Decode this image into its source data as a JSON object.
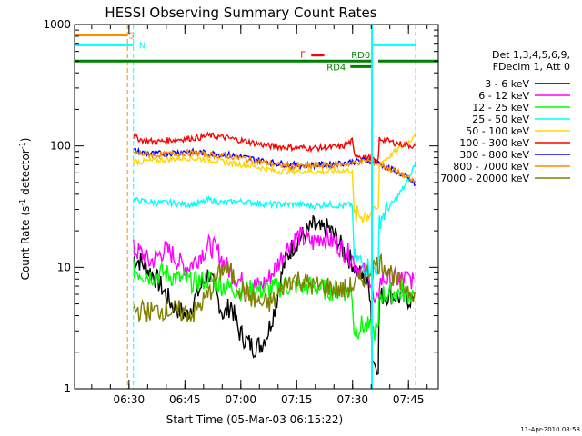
{
  "chart_data": {
    "type": "line",
    "title": "HESSI Observing Summary Count Rates",
    "xlabel": "Start Time (05-Mar-03 06:15:22)",
    "ylabel": "Count Rate (s⁻¹ detector⁻¹)",
    "ylabel_parts": {
      "base": "Count Rate (s",
      "sup1": "-1",
      "mid": " detector",
      "sup2": "-1",
      "end": ")"
    },
    "yscale": "log",
    "ylim": [
      1,
      1000
    ],
    "xlim": [
      "06:15:22",
      "07:53:00"
    ],
    "xlim_minutes": [
      0.0,
      97.6
    ],
    "x_ticks": [
      {
        "label": "06:30",
        "min": 14.6
      },
      {
        "label": "06:45",
        "min": 29.6
      },
      {
        "label": "07:00",
        "min": 44.6
      },
      {
        "label": "07:15",
        "min": 59.6
      },
      {
        "label": "07:30",
        "min": 74.6
      },
      {
        "label": "07:45",
        "min": 89.6
      }
    ],
    "y_ticks": [
      {
        "label": "1",
        "value": 1
      },
      {
        "label": "10",
        "value": 10
      },
      {
        "label": "100",
        "value": 100
      },
      {
        "label": "1000",
        "value": 1000
      }
    ],
    "legend": {
      "header1": "Det 1,3,4,5,6,9,",
      "header2": "FDecim 1, Att 0",
      "placement": "right"
    },
    "timestamp": "11-Apr-2010 08:58",
    "series": [
      {
        "name": "3 - 6 keV",
        "color": "#000000",
        "points": [
          [
            15.8,
            12
          ],
          [
            18,
            11
          ],
          [
            22,
            8
          ],
          [
            26,
            5
          ],
          [
            30,
            4
          ],
          [
            34,
            7
          ],
          [
            36,
            9
          ],
          [
            38,
            6
          ],
          [
            40,
            4
          ],
          [
            42,
            5
          ],
          [
            44,
            3
          ],
          [
            46,
            2.5
          ],
          [
            48,
            2.2
          ],
          [
            50,
            2.3
          ],
          [
            52,
            3
          ],
          [
            54,
            5
          ],
          [
            56,
            10
          ],
          [
            58,
            14
          ],
          [
            60,
            17
          ],
          [
            62,
            19
          ],
          [
            64,
            22
          ],
          [
            66,
            20
          ],
          [
            68,
            21
          ],
          [
            70,
            18
          ],
          [
            72,
            14
          ],
          [
            74.5,
            11
          ],
          [
            76,
            9
          ],
          [
            78,
            8
          ],
          [
            79.5,
            6
          ],
          [
            79.8,
            1.9
          ],
          [
            80.5,
            1.6
          ],
          [
            81.5,
            1.6
          ],
          [
            81.8,
            5.5
          ],
          [
            83,
            6
          ],
          [
            85,
            6
          ],
          [
            88,
            5.5
          ],
          [
            91,
            5.5
          ]
        ]
      },
      {
        "name": "6 - 12 keV",
        "color": "#ff00ff",
        "points": [
          [
            15.8,
            14
          ],
          [
            18,
            13
          ],
          [
            20,
            11
          ],
          [
            22,
            12
          ],
          [
            24,
            14
          ],
          [
            26,
            13
          ],
          [
            28,
            11
          ],
          [
            30,
            10
          ],
          [
            32,
            11
          ],
          [
            34,
            13
          ],
          [
            36,
            15
          ],
          [
            38,
            14
          ],
          [
            40,
            11
          ],
          [
            42,
            9
          ],
          [
            44,
            8
          ],
          [
            46,
            7
          ],
          [
            48,
            7
          ],
          [
            50,
            7
          ],
          [
            52,
            8
          ],
          [
            54,
            10
          ],
          [
            56,
            13
          ],
          [
            58,
            16
          ],
          [
            60,
            18
          ],
          [
            62,
            17
          ],
          [
            64,
            16
          ],
          [
            66,
            18
          ],
          [
            68,
            17
          ],
          [
            70,
            16
          ],
          [
            72,
            14
          ],
          [
            74.5,
            12
          ],
          [
            76,
            10
          ],
          [
            78,
            9
          ],
          [
            79.8,
            8
          ],
          [
            80.2,
            5
          ],
          [
            81.5,
            5
          ],
          [
            81.8,
            7.5
          ],
          [
            83,
            8
          ],
          [
            86,
            8
          ],
          [
            91,
            8
          ]
        ]
      },
      {
        "name": "12 - 25 keV",
        "color": "#00ff00",
        "points": [
          [
            15.8,
            9.5
          ],
          [
            18,
            9
          ],
          [
            20,
            8.5
          ],
          [
            24,
            9
          ],
          [
            28,
            8
          ],
          [
            32,
            7.5
          ],
          [
            36,
            8
          ],
          [
            40,
            7
          ],
          [
            44,
            6.5
          ],
          [
            48,
            6.5
          ],
          [
            52,
            6.5
          ],
          [
            56,
            7
          ],
          [
            60,
            7
          ],
          [
            64,
            7
          ],
          [
            68,
            6.5
          ],
          [
            72,
            6.5
          ],
          [
            74.5,
            6
          ],
          [
            75,
            3
          ],
          [
            77,
            3.3
          ],
          [
            79,
            3.2
          ],
          [
            79.8,
            2.8
          ],
          [
            80.2,
            3
          ],
          [
            81.5,
            3
          ],
          [
            81.8,
            6
          ],
          [
            84,
            6
          ],
          [
            88,
            6.2
          ],
          [
            91,
            6
          ]
        ]
      },
      {
        "name": "25 - 50 keV",
        "color": "#00ffff",
        "points": [
          [
            15.8,
            36
          ],
          [
            18,
            35
          ],
          [
            22,
            34
          ],
          [
            26,
            34
          ],
          [
            30,
            33
          ],
          [
            34,
            34
          ],
          [
            36,
            36
          ],
          [
            40,
            34
          ],
          [
            44,
            35
          ],
          [
            48,
            34
          ],
          [
            52,
            33
          ],
          [
            56,
            33
          ],
          [
            60,
            33
          ],
          [
            64,
            32
          ],
          [
            68,
            33
          ],
          [
            72,
            32
          ],
          [
            74.5,
            33
          ],
          [
            75,
            12
          ],
          [
            77,
            11
          ],
          [
            79,
            10
          ],
          [
            79.8,
            10.5
          ],
          [
            80.2,
            10
          ],
          [
            81.5,
            10
          ],
          [
            81.8,
            25
          ],
          [
            84,
            30
          ],
          [
            86,
            36
          ],
          [
            88,
            44
          ],
          [
            90,
            55
          ],
          [
            91.5,
            75
          ]
        ]
      },
      {
        "name": "50 - 100 keV",
        "color": "#ffd700",
        "points": [
          [
            15.8,
            75
          ],
          [
            18,
            74
          ],
          [
            22,
            76
          ],
          [
            26,
            78
          ],
          [
            30,
            80
          ],
          [
            34,
            78
          ],
          [
            38,
            76
          ],
          [
            42,
            72
          ],
          [
            46,
            70
          ],
          [
            50,
            66
          ],
          [
            54,
            62
          ],
          [
            58,
            62
          ],
          [
            62,
            62
          ],
          [
            66,
            61
          ],
          [
            70,
            62
          ],
          [
            74.5,
            63
          ],
          [
            75,
            26
          ],
          [
            77,
            27
          ],
          [
            79,
            28
          ],
          [
            79.8,
            30
          ],
          [
            80.2,
            30
          ],
          [
            81.5,
            30
          ],
          [
            81.8,
            72
          ],
          [
            84,
            80
          ],
          [
            86,
            90
          ],
          [
            88,
            100
          ],
          [
            90,
            110
          ],
          [
            91.5,
            130
          ]
        ]
      },
      {
        "name": "100 - 300 keV",
        "color": "#ff0000",
        "points": [
          [
            15.8,
            120
          ],
          [
            18,
            112
          ],
          [
            22,
            108
          ],
          [
            26,
            112
          ],
          [
            30,
            115
          ],
          [
            34,
            118
          ],
          [
            36,
            122
          ],
          [
            40,
            118
          ],
          [
            44,
            112
          ],
          [
            48,
            106
          ],
          [
            52,
            100
          ],
          [
            56,
            98
          ],
          [
            60,
            97
          ],
          [
            64,
            96
          ],
          [
            68,
            97
          ],
          [
            72,
            99
          ],
          [
            74.5,
            110
          ],
          [
            75,
            86
          ],
          [
            77,
            82
          ],
          [
            79,
            80
          ],
          [
            79.8,
            78
          ],
          [
            80.2,
            76
          ],
          [
            81.5,
            76
          ],
          [
            81.8,
            115
          ],
          [
            84,
            110
          ],
          [
            86,
            106
          ],
          [
            88,
            103
          ],
          [
            90,
            101
          ],
          [
            91.5,
            100
          ]
        ]
      },
      {
        "name": "300 - 800 keV",
        "color": "#0000ff",
        "points": [
          [
            15.8,
            92
          ],
          [
            18,
            88
          ],
          [
            22,
            86
          ],
          [
            26,
            88
          ],
          [
            30,
            90
          ],
          [
            34,
            88
          ],
          [
            38,
            86
          ],
          [
            42,
            84
          ],
          [
            46,
            80
          ],
          [
            50,
            76
          ],
          [
            54,
            72
          ],
          [
            58,
            70
          ],
          [
            62,
            69
          ],
          [
            66,
            70
          ],
          [
            70,
            71
          ],
          [
            74.5,
            74
          ],
          [
            77,
            76
          ],
          [
            79,
            76
          ],
          [
            81.5,
            72
          ],
          [
            84,
            66
          ],
          [
            86,
            62
          ],
          [
            88,
            58
          ],
          [
            90,
            52
          ],
          [
            91.5,
            48
          ]
        ]
      },
      {
        "name": "800 - 7000 keV",
        "color": "#ff8c00",
        "points": [
          [
            15.8,
            88
          ],
          [
            18,
            86
          ],
          [
            22,
            84
          ],
          [
            26,
            86
          ],
          [
            30,
            88
          ],
          [
            34,
            86
          ],
          [
            38,
            84
          ],
          [
            42,
            82
          ],
          [
            46,
            78
          ],
          [
            50,
            74
          ],
          [
            54,
            70
          ],
          [
            58,
            68
          ],
          [
            62,
            68
          ],
          [
            66,
            69
          ],
          [
            70,
            70
          ],
          [
            74.5,
            72
          ],
          [
            77,
            74
          ],
          [
            79,
            75
          ],
          [
            81.5,
            72
          ],
          [
            84,
            66
          ],
          [
            86,
            62
          ],
          [
            88,
            58
          ],
          [
            90,
            53
          ],
          [
            91.5,
            50
          ]
        ]
      },
      {
        "name": "7000 - 20000 keV",
        "color": "#808000",
        "points": [
          [
            15.8,
            4.5
          ],
          [
            20,
            4.3
          ],
          [
            24,
            4.5
          ],
          [
            28,
            4.3
          ],
          [
            32,
            4.2
          ],
          [
            34,
            5
          ],
          [
            36,
            6
          ],
          [
            38,
            8
          ],
          [
            40,
            10
          ],
          [
            42,
            9
          ],
          [
            44,
            7
          ],
          [
            46,
            6
          ],
          [
            48,
            5.5
          ],
          [
            50,
            5
          ],
          [
            52,
            5
          ],
          [
            54,
            5.5
          ],
          [
            56,
            7
          ],
          [
            58,
            8
          ],
          [
            60,
            8
          ],
          [
            62,
            7.5
          ],
          [
            64,
            7
          ],
          [
            66,
            7
          ],
          [
            68,
            7
          ],
          [
            70,
            6.5
          ],
          [
            72,
            6.5
          ],
          [
            74.5,
            7
          ],
          [
            76,
            7.5
          ],
          [
            78,
            8.5
          ],
          [
            80,
            10
          ],
          [
            82,
            11
          ],
          [
            84,
            10
          ],
          [
            86,
            8
          ],
          [
            88,
            7
          ],
          [
            90,
            6.5
          ],
          [
            91.5,
            6.2
          ]
        ]
      }
    ],
    "flags": {
      "saa_label": "S",
      "night_label": "N",
      "flare_label": "F",
      "rd0_label": "RD0",
      "rd4_label": "RD4",
      "saa_color": "#ff8c00",
      "night_color": "#00ffff",
      "flare_color": "#ff0000",
      "rd_color": "#008000",
      "saa_interval": [
        0,
        14.2
      ],
      "night_intervals": [
        [
          0,
          15.8
        ],
        [
          79.8,
          91.5
        ]
      ],
      "flare_interval": [
        63.5,
        67
      ],
      "rd0_intervals": [
        [
          0,
          79.6
        ],
        [
          81.5,
          97.6
        ]
      ],
      "rd4_interval": [
        74,
        79.6
      ],
      "saa_value": 820,
      "night_value": 680,
      "flare_value": 560,
      "rd0_value": 500,
      "rd4_value": 450
    }
  }
}
